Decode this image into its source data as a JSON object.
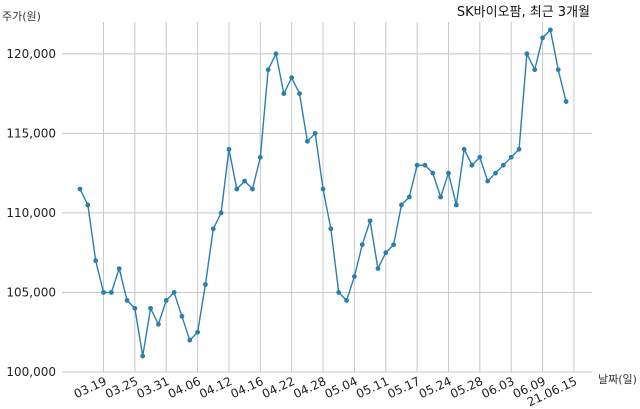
{
  "chart_data": {
    "type": "line",
    "title": "SK바이오팜, 최근 3개월",
    "xlabel": "날짜(일)",
    "ylabel": "주가(원)",
    "ylim": [
      100000,
      122000
    ],
    "yticks": [
      100000,
      105000,
      110000,
      115000,
      120000
    ],
    "ytick_labels": [
      "100,000",
      "105,000",
      "110,000",
      "115,000",
      "120,000"
    ],
    "xtick_labels": [
      "03.19",
      "03.25",
      "03.31",
      "04.06",
      "04.12",
      "04.16",
      "04.22",
      "04.28",
      "05.04",
      "05.11",
      "05.17",
      "05.24",
      "05.28",
      "06.03",
      "06.09",
      "21.06.15"
    ],
    "xtick_index": [
      3,
      7,
      11,
      15,
      19,
      23,
      27,
      31,
      35,
      39,
      43,
      47,
      51,
      55,
      59,
      63
    ],
    "grid": true,
    "legend": "none",
    "colors": {
      "line": "#2a7fb0",
      "grid": "#c8c8c8"
    },
    "series": [
      {
        "values": [
          111500,
          110500,
          107000,
          105000,
          105000,
          106500,
          104500,
          104000,
          101000,
          104000,
          103000,
          104500,
          105000,
          103500,
          102000,
          102500,
          105500,
          109000,
          110000,
          114000,
          111500,
          112000,
          111500,
          113500,
          119000,
          120000,
          117500,
          118500,
          117500,
          114500,
          115000,
          111500,
          109000,
          105000,
          104500,
          106000,
          108000,
          109500,
          106500,
          107500,
          108000,
          110500,
          111000,
          113000,
          113000,
          112500,
          111000,
          112500,
          110500,
          114000,
          113000,
          113500,
          112000,
          112500,
          113000,
          113500,
          114000,
          120000,
          119000,
          121000,
          121500,
          119000,
          117000
        ]
      }
    ]
  }
}
